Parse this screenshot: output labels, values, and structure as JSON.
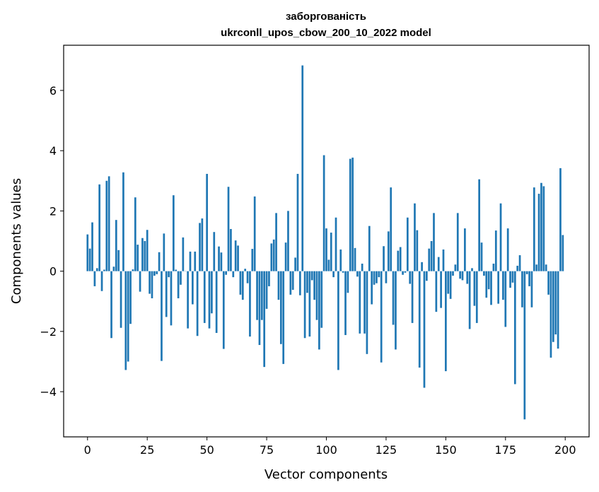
{
  "chart_data": {
    "type": "bar",
    "title_line1": "заборгованість",
    "title_line2": "ukrconll_upos_cbow_200_10_2022 model",
    "xlabel": "Vector components",
    "ylabel": "Components values",
    "xlim": [
      -10,
      210
    ],
    "ylim": [
      -5.5,
      7.5
    ],
    "xticks": [
      0,
      25,
      50,
      75,
      100,
      125,
      150,
      175,
      200
    ],
    "yticks": [
      -4,
      -2,
      0,
      2,
      4,
      6
    ],
    "ytick_labels": [
      "−4",
      "−2",
      "0",
      "2",
      "4",
      "6"
    ],
    "grid": false,
    "bar_color": "#1f77b4",
    "values": [
      1.22,
      0.75,
      1.62,
      -0.5,
      0.1,
      2.88,
      -0.66,
      0.05,
      3.0,
      3.15,
      -2.22,
      0.15,
      1.7,
      0.7,
      -1.88,
      3.28,
      -3.28,
      -3.0,
      -1.75,
      0.06,
      2.45,
      0.88,
      -0.68,
      1.1,
      1.0,
      1.37,
      -0.75,
      -0.9,
      -0.15,
      -0.1,
      0.63,
      -2.98,
      1.25,
      -1.52,
      -0.2,
      -1.8,
      2.52,
      0.05,
      -0.9,
      -0.45,
      1.12,
      0.0,
      -1.9,
      0.65,
      -1.1,
      0.65,
      -2.15,
      1.6,
      1.75,
      -1.72,
      3.23,
      -1.9,
      -1.4,
      1.3,
      -2.05,
      0.82,
      0.62,
      -2.58,
      -0.12,
      2.8,
      1.4,
      -0.2,
      1.02,
      0.85,
      -0.78,
      -0.95,
      0.08,
      -0.4,
      -2.17,
      0.74,
      2.48,
      -1.62,
      -2.45,
      -1.62,
      -3.18,
      -1.25,
      -0.5,
      0.92,
      1.05,
      1.93,
      -0.95,
      -2.42,
      -3.08,
      0.95,
      2.0,
      -0.78,
      -0.62,
      0.45,
      3.23,
      -0.8,
      6.83,
      -2.22,
      -0.72,
      -2.17,
      -0.3,
      -0.95,
      -1.62,
      -2.6,
      -1.88,
      3.85,
      1.42,
      0.38,
      1.28,
      -0.2,
      1.78,
      -3.28,
      0.72,
      -0.05,
      -2.12,
      -0.72,
      3.73,
      3.77,
      0.77,
      -0.18,
      -2.07,
      0.25,
      -2.07,
      -2.75,
      1.5,
      -1.1,
      -0.45,
      -0.4,
      -0.2,
      -3.03,
      0.83,
      -0.4,
      1.32,
      2.78,
      -1.78,
      -2.6,
      0.68,
      0.8,
      -0.12,
      -0.05,
      1.78,
      -0.42,
      -1.72,
      2.25,
      1.36,
      -3.2,
      0.3,
      -3.87,
      -0.32,
      0.75,
      1.0,
      1.93,
      -1.35,
      0.47,
      -1.22,
      0.72,
      -3.32,
      -0.75,
      -0.92,
      -0.15,
      0.22,
      1.93,
      -0.25,
      -0.3,
      1.42,
      -0.42,
      -1.92,
      0.1,
      -1.15,
      -1.72,
      3.05,
      0.95,
      -0.15,
      -0.88,
      -0.6,
      -1.12,
      0.25,
      1.35,
      -1.08,
      2.25,
      -0.95,
      -1.85,
      1.42,
      -0.55,
      -0.38,
      -3.75,
      0.18,
      0.53,
      -1.2,
      -4.92,
      -0.1,
      -0.5,
      -1.2,
      2.78,
      0.22,
      2.57,
      2.93,
      2.82,
      0.22,
      -0.78,
      -2.87,
      -2.35,
      -2.1,
      -2.57,
      3.42,
      1.2
    ]
  }
}
